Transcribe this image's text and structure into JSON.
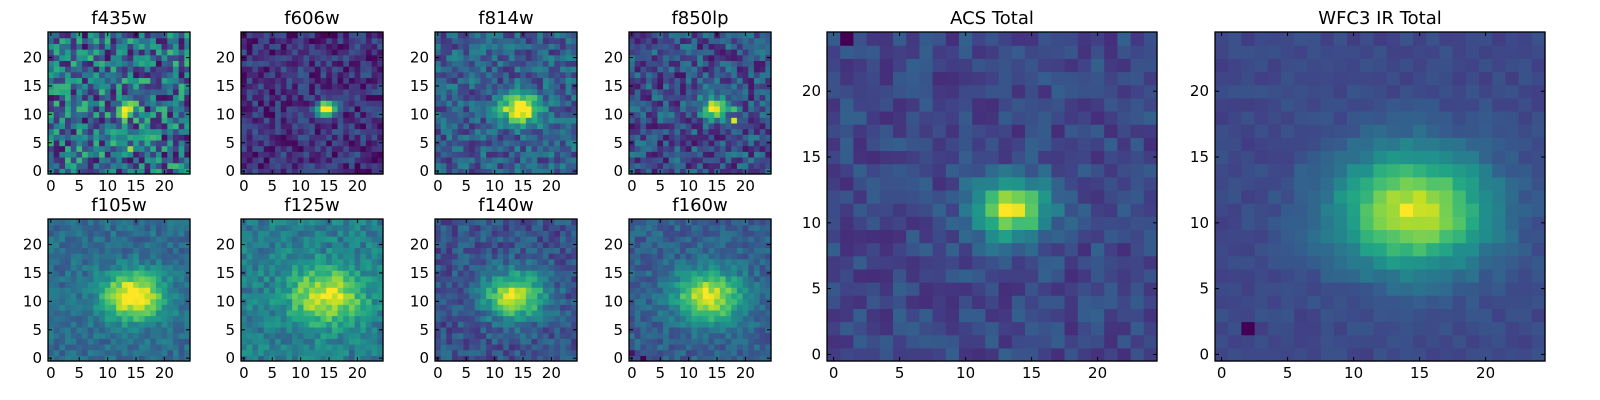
{
  "chart_data": [
    {
      "type": "heatmap",
      "title": "f435w",
      "colormap": "viridis",
      "blob": {
        "sigma": 1.0,
        "amp": 0.8
      },
      "noise": 0.65,
      "base": 0.36,
      "extra_peaks": [
        {
          "x": 2,
          "y": 4,
          "v": 0.05
        },
        {
          "x": 14,
          "y": 4,
          "v": 0.85
        },
        {
          "x": 16,
          "y": 11,
          "v": 0.7
        }
      ],
      "xlim": [
        0,
        24
      ],
      "ylim": [
        0,
        24
      ],
      "xticks": [
        0,
        5,
        10,
        15,
        20
      ],
      "yticks": [
        0,
        5,
        10,
        15,
        20
      ],
      "peak": {
        "x": 13,
        "y": 11
      }
    },
    {
      "type": "heatmap",
      "title": "f606w",
      "colormap": "viridis",
      "blob": {
        "sigma": 1.0,
        "amp": 0.85
      },
      "noise": 0.3,
      "base": 0.15,
      "extra_peaks": [],
      "xlim": [
        0,
        24
      ],
      "ylim": [
        0,
        24
      ],
      "xticks": [
        0,
        5,
        10,
        15,
        20
      ],
      "yticks": [
        0,
        5,
        10,
        15,
        20
      ],
      "peak": {
        "x": 14,
        "y": 11
      }
    },
    {
      "type": "heatmap",
      "title": "f814w",
      "colormap": "viridis",
      "blob": {
        "sigma": 1.8,
        "amp": 0.85
      },
      "noise": 0.35,
      "base": 0.3,
      "extra_peaks": [
        {
          "x": 13,
          "y": 10,
          "v": 0.9
        },
        {
          "x": 13,
          "y": 9,
          "v": 0.75
        }
      ],
      "xlim": [
        0,
        24
      ],
      "ylim": [
        0,
        24
      ],
      "xticks": [
        0,
        5,
        10,
        15,
        20
      ],
      "yticks": [
        0,
        5,
        10,
        15,
        20
      ],
      "peak": {
        "x": 14,
        "y": 11
      }
    },
    {
      "type": "heatmap",
      "title": "f850lp",
      "colormap": "viridis",
      "blob": {
        "sigma": 1.4,
        "amp": 0.6
      },
      "noise": 0.4,
      "base": 0.25,
      "extra_peaks": [
        {
          "x": 18,
          "y": 9,
          "v": 0.95
        },
        {
          "x": 18,
          "y": 11,
          "v": 0.7
        },
        {
          "x": 16,
          "y": 10,
          "v": 0.6
        }
      ],
      "xlim": [
        0,
        24
      ],
      "ylim": [
        0,
        24
      ],
      "xticks": [
        0,
        5,
        10,
        15,
        20
      ],
      "yticks": [
        0,
        5,
        10,
        15,
        20
      ],
      "peak": {
        "x": 14,
        "y": 11
      }
    },
    {
      "type": "heatmap",
      "title": "f105w",
      "colormap": "viridis",
      "blob": {
        "sigma": 3.0,
        "amp": 0.7
      },
      "noise": 0.2,
      "base": 0.35,
      "extra_peaks": [],
      "xlim": [
        0,
        24
      ],
      "ylim": [
        0,
        24
      ],
      "xticks": [
        0,
        5,
        10,
        15,
        20
      ],
      "yticks": [
        0,
        5,
        10,
        15,
        20
      ],
      "peak": {
        "x": 14,
        "y": 11
      }
    },
    {
      "type": "heatmap",
      "title": "f125w",
      "colormap": "viridis",
      "blob": {
        "sigma": 3.5,
        "amp": 0.55
      },
      "noise": 0.25,
      "base": 0.42,
      "extra_peaks": [
        {
          "x": 18,
          "y": 11,
          "v": 0.85
        },
        {
          "x": 15,
          "y": 10,
          "v": 0.9
        },
        {
          "x": 12,
          "y": 10,
          "v": 0.85
        },
        {
          "x": 20,
          "y": 10,
          "v": 0.8
        }
      ],
      "xlim": [
        0,
        24
      ],
      "ylim": [
        0,
        24
      ],
      "xticks": [
        0,
        5,
        10,
        15,
        20
      ],
      "yticks": [
        0,
        5,
        10,
        15,
        20
      ],
      "peak": {
        "x": 14,
        "y": 11
      }
    },
    {
      "type": "heatmap",
      "title": "f140w",
      "colormap": "viridis",
      "blob": {
        "sigma": 3.0,
        "amp": 0.65
      },
      "noise": 0.25,
      "base": 0.25,
      "extra_peaks": [],
      "xlim": [
        0,
        24
      ],
      "ylim": [
        0,
        24
      ],
      "xticks": [
        0,
        5,
        10,
        15,
        20
      ],
      "yticks": [
        0,
        5,
        10,
        15,
        20
      ],
      "peak": {
        "x": 13,
        "y": 11
      }
    },
    {
      "type": "heatmap",
      "title": "f160w",
      "colormap": "viridis",
      "blob": {
        "sigma": 3.2,
        "amp": 0.65
      },
      "noise": 0.2,
      "base": 0.3,
      "extra_peaks": [
        {
          "x": 2,
          "y": 0,
          "v": 0.0
        },
        {
          "x": 0,
          "y": 1,
          "v": 0.05
        }
      ],
      "xlim": [
        0,
        24
      ],
      "ylim": [
        0,
        24
      ],
      "xticks": [
        0,
        5,
        10,
        15,
        20
      ],
      "yticks": [
        0,
        5,
        10,
        15,
        20
      ],
      "peak": {
        "x": 13,
        "y": 11
      }
    },
    {
      "type": "heatmap",
      "title": "ACS Total",
      "colormap": "viridis",
      "blob": {
        "sigma": 1.6,
        "amp": 0.7
      },
      "noise": 0.18,
      "base": 0.22,
      "extra_peaks": [
        {
          "x": 1,
          "y": 24,
          "v": 0.0
        }
      ],
      "xlim": [
        0,
        24
      ],
      "ylim": [
        0,
        24
      ],
      "xticks": [
        0,
        5,
        10,
        15,
        20
      ],
      "yticks": [
        0,
        5,
        10,
        15,
        20
      ],
      "peak": {
        "x": 13,
        "y": 11
      }
    },
    {
      "type": "heatmap",
      "title": "WFC3 IR Total",
      "colormap": "viridis",
      "blob": {
        "sigma": 3.2,
        "amp": 0.7
      },
      "noise": 0.08,
      "base": 0.22,
      "extra_peaks": [
        {
          "x": 2,
          "y": 2,
          "v": 0.0
        }
      ],
      "xlim": [
        0,
        24
      ],
      "ylim": [
        0,
        24
      ],
      "xticks": [
        0,
        5,
        10,
        15,
        20
      ],
      "yticks": [
        0,
        5,
        10,
        15,
        20
      ],
      "peak": {
        "x": 14,
        "y": 11
      }
    }
  ]
}
